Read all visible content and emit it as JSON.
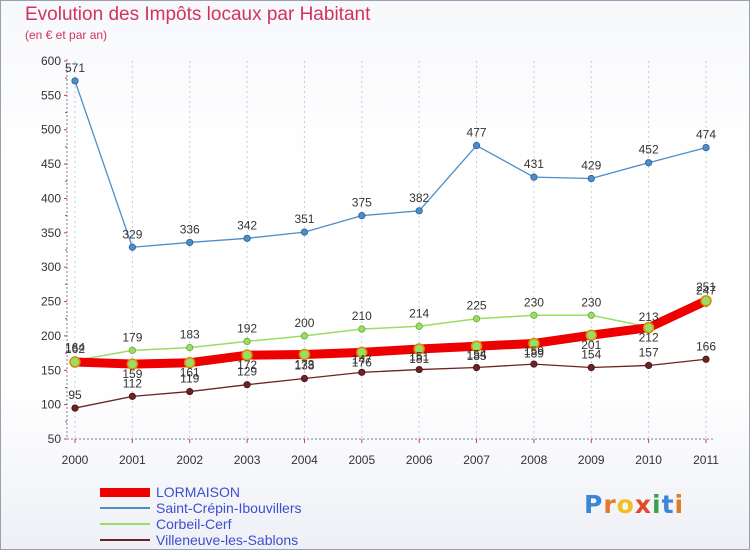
{
  "title": "Evolution des Impôts locaux par Habitant",
  "subtitle": "(en € et par an)",
  "logo_text": [
    "P",
    "r",
    "o",
    "x",
    "i",
    "t",
    "i"
  ],
  "logo_colors": [
    "#3d86d6",
    "#e07a2a",
    "#f0c020",
    "#e04a2a",
    "#3aa34a",
    "#3d86d6",
    "#e07a2a"
  ],
  "chart_data": {
    "type": "line",
    "title": "Evolution des Impôts locaux par Habitant",
    "subtitle": "(en € et par an)",
    "xlabel": "",
    "ylabel": "",
    "ylim": [
      50,
      600
    ],
    "yticks": [
      "50",
      "100",
      "150",
      "200",
      "250",
      "300",
      "350",
      "400",
      "450",
      "500",
      "550",
      "600"
    ],
    "categories": [
      "2000",
      "2001",
      "2002",
      "2003",
      "2004",
      "2005",
      "2006",
      "2007",
      "2008",
      "2009",
      "2010",
      "2011"
    ],
    "series": [
      {
        "name": "LORMAISON",
        "color": "#ee0000",
        "values": [
          162,
          159,
          161,
          172,
          173,
          176,
          181,
          185,
          189,
          201,
          212,
          251
        ]
      },
      {
        "name": "Saint-Crépin-Ibouvillers",
        "color": "#4d8ec8",
        "values": [
          571,
          329,
          336,
          342,
          351,
          375,
          382,
          477,
          431,
          429,
          452,
          474
        ]
      },
      {
        "name": "Corbeil-Cerf",
        "color": "#99dd66",
        "values": [
          164,
          179,
          183,
          192,
          200,
          210,
          214,
          225,
          230,
          230,
          213,
          247
        ]
      },
      {
        "name": "Villeneuve-les-Sablons",
        "color": "#6b2424",
        "values": [
          95,
          112,
          119,
          129,
          138,
          147,
          151,
          154,
          159,
          154,
          157,
          166
        ]
      }
    ]
  }
}
